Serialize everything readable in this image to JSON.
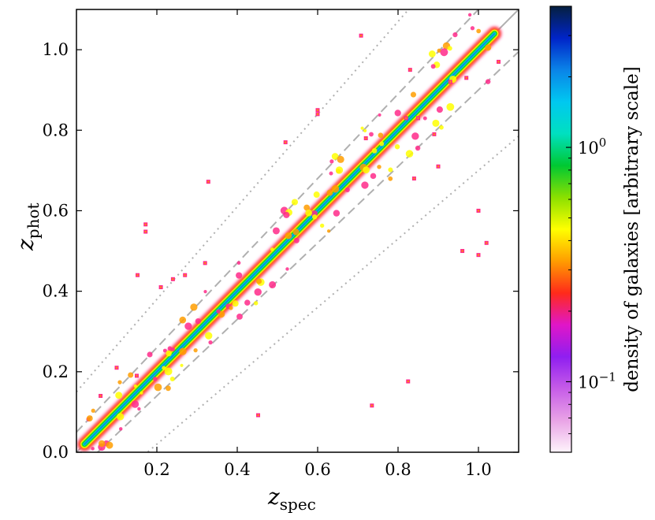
{
  "chart_data": {
    "type": "scatter",
    "title": "",
    "xlabel": "z",
    "xlabel_sub": "spec",
    "ylabel": "z",
    "ylabel_sub": "phot",
    "xlim": [
      0.0,
      1.1
    ],
    "ylim": [
      0.0,
      1.1
    ],
    "xticks": [
      {
        "value": 0.2,
        "label": "0.2"
      },
      {
        "value": 0.4,
        "label": "0.4"
      },
      {
        "value": 0.6,
        "label": "0.6"
      },
      {
        "value": 0.8,
        "label": "0.8"
      },
      {
        "value": 1.0,
        "label": "1.0"
      }
    ],
    "yticks": [
      {
        "value": 0.0,
        "label": "0.0"
      },
      {
        "value": 0.2,
        "label": "0.2"
      },
      {
        "value": 0.4,
        "label": "0.4"
      },
      {
        "value": 0.6,
        "label": "0.6"
      },
      {
        "value": 0.8,
        "label": "0.8"
      },
      {
        "value": 1.0,
        "label": "1.0"
      }
    ],
    "grid": false,
    "reference_lines": [
      {
        "style": "solid",
        "color": "#b0b0b0",
        "relation": "z_phot = z_spec"
      },
      {
        "style": "dashed",
        "color": "#b0b0b0",
        "relation": "z_phot = z_spec ± 0.05(1+z_spec)"
      },
      {
        "style": "dotted",
        "color": "#b0b0b0",
        "relation": "z_phot = z_spec ± 0.15(1+z_spec)"
      }
    ],
    "density_core_ridge": [
      [
        0.02,
        0.02
      ],
      [
        0.05,
        0.05
      ],
      [
        0.08,
        0.08
      ],
      [
        0.12,
        0.12
      ],
      [
        0.16,
        0.16
      ],
      [
        0.2,
        0.2
      ],
      [
        0.24,
        0.24
      ],
      [
        0.28,
        0.28
      ],
      [
        0.32,
        0.32
      ],
      [
        0.36,
        0.36
      ],
      [
        0.4,
        0.4
      ],
      [
        0.44,
        0.44
      ],
      [
        0.48,
        0.48
      ],
      [
        0.52,
        0.52
      ],
      [
        0.56,
        0.56
      ],
      [
        0.6,
        0.6
      ],
      [
        0.64,
        0.64
      ],
      [
        0.68,
        0.68
      ],
      [
        0.72,
        0.72
      ],
      [
        0.76,
        0.76
      ],
      [
        0.8,
        0.8
      ],
      [
        0.84,
        0.84
      ],
      [
        0.88,
        0.88
      ],
      [
        0.92,
        0.92
      ],
      [
        0.96,
        0.96
      ],
      [
        1.0,
        1.0
      ],
      [
        1.04,
        1.04
      ]
    ],
    "outliers": [
      [
        0.708,
        1.035
      ],
      [
        0.825,
        0.176
      ],
      [
        0.735,
        0.116
      ],
      [
        0.452,
        0.092
      ],
      [
        0.328,
        0.672
      ],
      [
        0.172,
        0.566
      ],
      [
        0.172,
        0.548
      ],
      [
        0.152,
        0.44
      ],
      [
        0.21,
        0.41
      ],
      [
        0.24,
        0.43
      ],
      [
        0.27,
        0.44
      ],
      [
        0.32,
        0.47
      ],
      [
        0.96,
        0.5
      ],
      [
        1.0,
        0.49
      ],
      [
        1.02,
        0.52
      ],
      [
        1.0,
        0.6
      ],
      [
        0.6,
        0.85
      ],
      [
        0.6,
        0.84
      ],
      [
        0.82,
        0.83
      ],
      [
        0.85,
        0.83
      ],
      [
        0.89,
        0.79
      ],
      [
        0.9,
        0.71
      ],
      [
        0.84,
        0.68
      ],
      [
        0.93,
        0.92
      ],
      [
        0.97,
        0.93
      ],
      [
        1.05,
        0.97
      ],
      [
        0.52,
        0.77
      ],
      [
        0.83,
        0.95
      ],
      [
        0.15,
        0.19
      ],
      [
        0.1,
        0.21
      ],
      [
        0.06,
        0.14
      ],
      [
        0.72,
        0.78
      ]
    ],
    "colorbar": {
      "label": "density of galaxies [arbitrary scale]",
      "scale": "log",
      "ticks": [
        {
          "value": 1.0,
          "label": "10",
          "exp": "0"
        },
        {
          "value": 0.1,
          "label": "10",
          "exp": "−1"
        }
      ],
      "range": [
        0.05,
        4.0
      ],
      "colormap": [
        "#fef4fb",
        "#e9a3e6",
        "#c65ce8",
        "#8f1ef0",
        "#e016c8",
        "#ff2a1a",
        "#ff9d00",
        "#ffff00",
        "#8be000",
        "#00c832",
        "#00e0c0",
        "#00c8f0",
        "#0a84e8",
        "#0024c8",
        "#052040"
      ]
    }
  }
}
